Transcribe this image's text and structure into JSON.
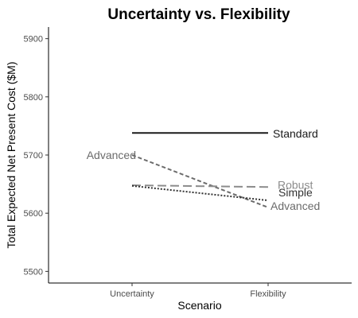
{
  "chart_data": {
    "type": "line",
    "title": "Uncertainty vs. Flexibility",
    "xlabel": "Scenario",
    "ylabel": "Total Expected Net Present Cost ($M)",
    "categories": [
      "Uncertainty",
      "Flexibility"
    ],
    "ylim": [
      5480,
      5920
    ],
    "yticks": [
      5500,
      5600,
      5700,
      5800,
      5900
    ],
    "grid": false,
    "legend": "none",
    "series": [
      {
        "name": "Standard",
        "values": [
          5738,
          5738
        ],
        "color": "#1a1a1a",
        "dash": "solid",
        "label_color": "#1a1a1a",
        "label_at": "end"
      },
      {
        "name": "Advanced",
        "values": [
          5700,
          5610
        ],
        "color": "#6b6b6b",
        "dash": "dashed",
        "label_color": "#6b6b6b",
        "label_at": "both"
      },
      {
        "name": "Robust",
        "values": [
          5648,
          5645
        ],
        "color": "#8c8c8c",
        "dash": "longdash",
        "label_color": "#8c8c8c",
        "label_at": "end"
      },
      {
        "name": "Simple",
        "values": [
          5647,
          5622
        ],
        "color": "#333333",
        "dash": "dotted",
        "label_color": "#333333",
        "label_at": "end"
      }
    ]
  }
}
